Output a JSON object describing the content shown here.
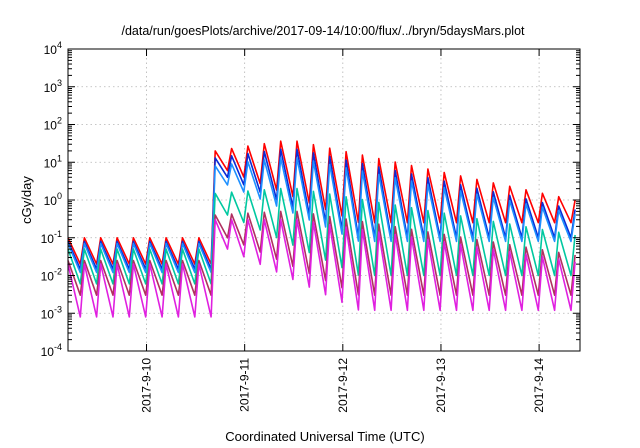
{
  "chart_data": {
    "type": "line",
    "title": "/data/run/goesPlots/archive/2017-09-14/10:00/flux/../bryn/5daysMars.plot",
    "xlabel": "Coordinated Universal Time (UTC)",
    "ylabel": "cGy/day",
    "yscale": "log",
    "ylim": [
      0.0001,
      10000
    ],
    "xlim": [
      "2017-09-09T04:48",
      "2017-09-14T10:00"
    ],
    "grid": true,
    "legend": "none",
    "yticks": [
      {
        "value": 0.0001,
        "base": "10",
        "exp": "-4"
      },
      {
        "value": 0.001,
        "base": "10",
        "exp": "-3"
      },
      {
        "value": 0.01,
        "base": "10",
        "exp": "-2"
      },
      {
        "value": 0.1,
        "base": "10",
        "exp": "-1"
      },
      {
        "value": 1,
        "base": "10",
        "exp": "0"
      },
      {
        "value": 10,
        "base": "10",
        "exp": "1"
      },
      {
        "value": 100,
        "base": "10",
        "exp": "2"
      },
      {
        "value": 1000,
        "base": "10",
        "exp": "3"
      },
      {
        "value": 10000,
        "base": "10",
        "exp": "4"
      }
    ],
    "xticks": [
      {
        "value": "2017-09-10T00:00",
        "label": "2017-9-10"
      },
      {
        "value": "2017-09-11T00:00",
        "label": "2017-9-11"
      },
      {
        "value": "2017-09-12T00:00",
        "label": "2017-9-12"
      },
      {
        "value": "2017-09-13T00:00",
        "label": "2017-9-13"
      },
      {
        "value": "2017-09-14T00:00",
        "label": "2017-9-14"
      }
    ],
    "event_time": "2017-09-10T16:00",
    "oscillation_period_hours": 4,
    "series": [
      {
        "color": "#ff0000",
        "pre_event": [
          0.02,
          0.1
        ],
        "post_event_peak": [
          20,
          36
        ],
        "post_event_trough": [
          6,
          0.15
        ],
        "end": [
          0.25,
          0.8
        ]
      },
      {
        "color": "#0a2bd6",
        "pre_event": [
          0.015,
          0.08
        ],
        "post_event_peak": [
          13,
          22
        ],
        "post_event_trough": [
          4,
          0.1
        ],
        "end": [
          0.1,
          0.45
        ]
      },
      {
        "color": "#1e90ff",
        "pre_event": [
          0.012,
          0.07
        ],
        "post_event_peak": [
          8,
          13
        ],
        "post_event_trough": [
          2.5,
          0.06
        ],
        "end": [
          0.08,
          0.35
        ]
      },
      {
        "color": "#00c8a0",
        "pre_event": [
          0.006,
          0.05
        ],
        "post_event_peak": [
          1.5,
          2
        ],
        "post_event_trough": [
          0.4,
          0.02
        ],
        "end": [
          0.01,
          0.1
        ]
      },
      {
        "color": "#b03060",
        "pre_event": [
          0.003,
          0.025
        ],
        "post_event_peak": [
          0.4,
          0.5
        ],
        "post_event_trough": [
          0.1,
          0.005
        ],
        "end": [
          0.003,
          0.03
        ]
      },
      {
        "color": "#e020e0",
        "pre_event": [
          0.0008,
          0.02
        ],
        "post_event_peak": [
          0.3,
          0.3
        ],
        "post_event_trough": [
          0.05,
          0.001
        ],
        "end": [
          0.0012,
          0.02
        ]
      }
    ]
  }
}
